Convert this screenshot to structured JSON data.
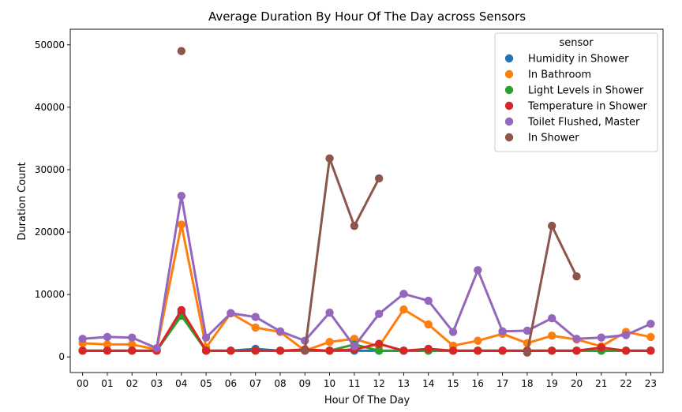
{
  "chart_data": {
    "type": "line",
    "title": "Average Duration By Hour Of The Day across Sensors",
    "xlabel": "Hour Of The Day",
    "ylabel": "Duration Count",
    "ylim": [
      -2500,
      52500
    ],
    "yticks": [
      0,
      10000,
      20000,
      30000,
      40000,
      50000
    ],
    "ytick_labels": [
      "0",
      "10000",
      "20000",
      "30000",
      "40000",
      "50000"
    ],
    "categories": [
      "00",
      "01",
      "02",
      "03",
      "04",
      "05",
      "06",
      "07",
      "08",
      "09",
      "10",
      "11",
      "12",
      "13",
      "14",
      "15",
      "16",
      "17",
      "18",
      "19",
      "20",
      "21",
      "22",
      "23"
    ],
    "legend": {
      "title": "sensor",
      "position": "top-right"
    },
    "series": [
      {
        "name": "Humidity in Shower",
        "color": "#1f77b4",
        "values": [
          1000,
          1000,
          1000,
          1000,
          7000,
          1000,
          1000,
          1300,
          1000,
          1000,
          1000,
          1000,
          1000,
          1000,
          1000,
          1000,
          1000,
          1000,
          1000,
          1000,
          1000,
          1000,
          1000,
          1000
        ]
      },
      {
        "name": "In Bathroom",
        "color": "#ff7f0e",
        "values": [
          2200,
          2000,
          2000,
          1200,
          21200,
          1500,
          7000,
          4700,
          4000,
          1000,
          2400,
          2900,
          1700,
          7600,
          5200,
          1800,
          2600,
          3700,
          2200,
          3400,
          2800,
          1700,
          4000,
          3200
        ]
      },
      {
        "name": "Light Levels in Shower",
        "color": "#2ca02c",
        "values": [
          1000,
          1000,
          1000,
          1000,
          6600,
          1000,
          1000,
          1000,
          1000,
          1000,
          1000,
          2000,
          1000,
          1000,
          1000,
          1000,
          1000,
          1000,
          1000,
          1000,
          1000,
          1000,
          1000,
          1000
        ]
      },
      {
        "name": "Temperature in Shower",
        "color": "#d62728",
        "values": [
          1000,
          1000,
          1000,
          1000,
          7500,
          1000,
          1000,
          1000,
          1000,
          1200,
          1000,
          1200,
          2100,
          1000,
          1300,
          1000,
          1000,
          1000,
          1000,
          1000,
          1000,
          1500,
          1000,
          1000
        ]
      },
      {
        "name": "Toilet Flushed, Master",
        "color": "#9467bd",
        "values": [
          2900,
          3200,
          3100,
          1400,
          25800,
          3100,
          7000,
          6400,
          4100,
          2600,
          7100,
          1700,
          6900,
          10100,
          9000,
          4000,
          13900,
          4100,
          4200,
          6200,
          2900,
          3100,
          3500,
          5300
        ]
      },
      {
        "name": "In Shower",
        "color": "#8c564b",
        "values": [
          null,
          null,
          null,
          null,
          49000,
          null,
          null,
          null,
          null,
          1000,
          31800,
          21000,
          28600,
          null,
          null,
          null,
          null,
          null,
          700,
          21000,
          12900,
          null,
          null,
          null
        ]
      }
    ]
  }
}
